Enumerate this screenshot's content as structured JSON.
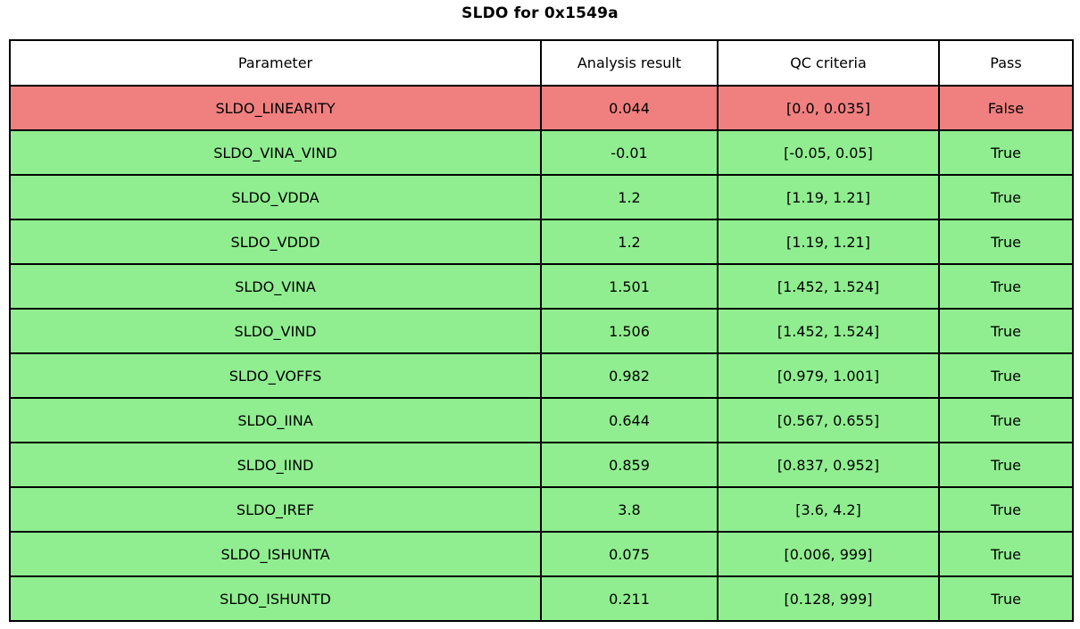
{
  "title": "SLDO for 0x1549a",
  "colors": {
    "fail_row": "#f08080",
    "pass_row": "#90ee90",
    "header_bg": "#ffffff",
    "border": "#000000",
    "text": "#000000"
  },
  "chart_data": {
    "type": "table",
    "title": "SLDO for 0x1549a",
    "columns": [
      "Parameter",
      "Analysis result",
      "QC criteria",
      "Pass"
    ],
    "rows": [
      {
        "parameter": "SLDO_LINEARITY",
        "result": "0.044",
        "criteria": "[0.0, 0.035]",
        "pass": "False",
        "status": "fail"
      },
      {
        "parameter": "SLDO_VINA_VIND",
        "result": "-0.01",
        "criteria": "[-0.05, 0.05]",
        "pass": "True",
        "status": "pass"
      },
      {
        "parameter": "SLDO_VDDA",
        "result": "1.2",
        "criteria": "[1.19, 1.21]",
        "pass": "True",
        "status": "pass"
      },
      {
        "parameter": "SLDO_VDDD",
        "result": "1.2",
        "criteria": "[1.19, 1.21]",
        "pass": "True",
        "status": "pass"
      },
      {
        "parameter": "SLDO_VINA",
        "result": "1.501",
        "criteria": "[1.452, 1.524]",
        "pass": "True",
        "status": "pass"
      },
      {
        "parameter": "SLDO_VIND",
        "result": "1.506",
        "criteria": "[1.452, 1.524]",
        "pass": "True",
        "status": "pass"
      },
      {
        "parameter": "SLDO_VOFFS",
        "result": "0.982",
        "criteria": "[0.979, 1.001]",
        "pass": "True",
        "status": "pass"
      },
      {
        "parameter": "SLDO_IINA",
        "result": "0.644",
        "criteria": "[0.567, 0.655]",
        "pass": "True",
        "status": "pass"
      },
      {
        "parameter": "SLDO_IIND",
        "result": "0.859",
        "criteria": "[0.837, 0.952]",
        "pass": "True",
        "status": "pass"
      },
      {
        "parameter": "SLDO_IREF",
        "result": "3.8",
        "criteria": "[3.6, 4.2]",
        "pass": "True",
        "status": "pass"
      },
      {
        "parameter": "SLDO_ISHUNTA",
        "result": "0.075",
        "criteria": "[0.006, 999]",
        "pass": "True",
        "status": "pass"
      },
      {
        "parameter": "SLDO_ISHUNTD",
        "result": "0.211",
        "criteria": "[0.128, 999]",
        "pass": "True",
        "status": "pass"
      }
    ]
  }
}
